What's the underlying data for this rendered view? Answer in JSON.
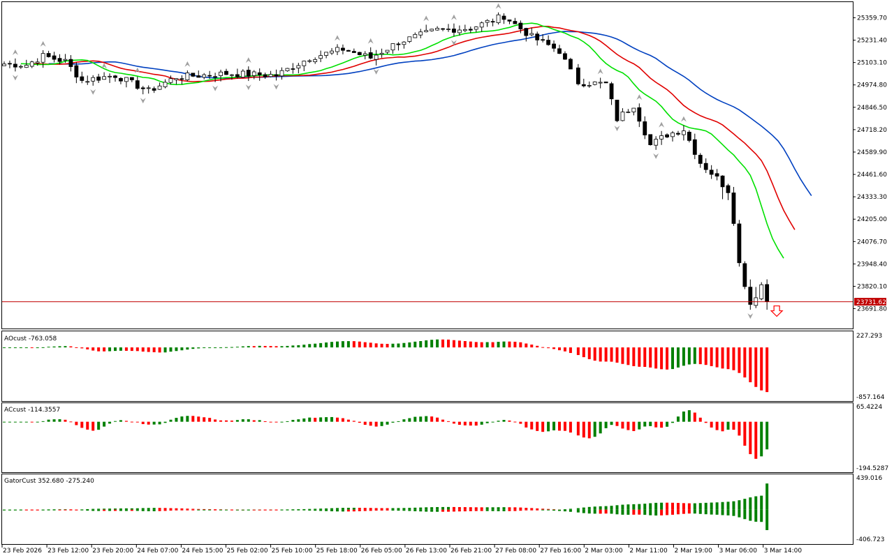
{
  "colors": {
    "background": "#ffffff",
    "frame": "#000000",
    "bull_candle": "#ffffff",
    "bear_candle": "#000000",
    "alligator_lips": "#00e000",
    "alligator_teeth": "#e00000",
    "alligator_jaw": "#0040c0",
    "hist_up": "#008000",
    "hist_down": "#ff0000",
    "price_line": "#c00000",
    "fractal": "#a0a0a0",
    "signal_arrow": "#ff0000"
  },
  "main": {
    "price_ticks": [
      "25359.70",
      "25231.40",
      "25103.10",
      "24974.80",
      "24846.50",
      "24718.20",
      "24589.90",
      "24461.60",
      "24333.30",
      "24205.00",
      "24076.70",
      "23948.40",
      "23820.10",
      "23691.80"
    ],
    "current_price": 23731.62,
    "current_price_label": "23731.62",
    "signal_arrow_icon": "down-arrow-icon"
  },
  "ao": {
    "label": "AOcust -763.058",
    "top_tick": "227.293",
    "bottom_tick": "-857.164"
  },
  "ac": {
    "label": "ACcust -114.3557",
    "top_tick": "65.4224",
    "bottom_tick": "-194.5287"
  },
  "gator": {
    "label": "GatorCust 352.680 -275.240",
    "top_tick": "439.016",
    "bottom_tick": "-406.723"
  },
  "time_axis": {
    "labels": [
      "23 Feb 2026",
      "23 Feb 12:00",
      "23 Feb 20:00",
      "24 Feb 07:00",
      "24 Feb 15:00",
      "25 Feb 02:00",
      "25 Feb 10:00",
      "25 Feb 18:00",
      "26 Feb 05:00",
      "26 Feb 13:00",
      "26 Feb 21:00",
      "27 Feb 08:00",
      "27 Feb 16:00",
      "2 Mar 03:00",
      "2 Mar 11:00",
      "2 Mar 19:00",
      "3 Mar 06:00",
      "3 Mar 14:00"
    ]
  },
  "chart_data": {
    "type": "candlestick",
    "symbol_timeframe": "hourly",
    "bar_count": 140,
    "price_range": [
      23640,
      25420
    ],
    "anchors": [
      [
        0,
        25095
      ],
      [
        4,
        25090
      ],
      [
        7,
        25140
      ],
      [
        11,
        25110
      ],
      [
        14,
        25000
      ],
      [
        20,
        25030
      ],
      [
        26,
        24940
      ],
      [
        31,
        25020
      ],
      [
        40,
        25040
      ],
      [
        49,
        25030
      ],
      [
        55,
        25130
      ],
      [
        61,
        25180
      ],
      [
        66,
        25130
      ],
      [
        71,
        25220
      ],
      [
        78,
        25290
      ],
      [
        84,
        25300
      ],
      [
        90,
        25370
      ],
      [
        95,
        25250
      ],
      [
        100,
        25170
      ],
      [
        103,
        24990
      ],
      [
        108,
        24980
      ],
      [
        110,
        24780
      ],
      [
        113,
        24860
      ],
      [
        116,
        24630
      ],
      [
        119,
        24690
      ],
      [
        122,
        24720
      ],
      [
        125,
        24530
      ],
      [
        128,
        24440
      ],
      [
        130,
        24370
      ],
      [
        131,
        24200
      ],
      [
        132,
        23950
      ],
      [
        134,
        23720
      ],
      [
        135,
        23770
      ],
      [
        136,
        23830
      ],
      [
        137,
        23731.62
      ]
    ],
    "gap_after_bar": 102,
    "last_bar_index": 137,
    "ao_range": [
      -857.164,
      227.293
    ],
    "ac_range": [
      -194.5287,
      65.4224
    ],
    "gator_range": [
      -406.723,
      439.016
    ],
    "ao_last": -763.058,
    "ac_last": -114.3557,
    "gator_last_upper": 352.68,
    "gator_last_lower": -275.24
  }
}
